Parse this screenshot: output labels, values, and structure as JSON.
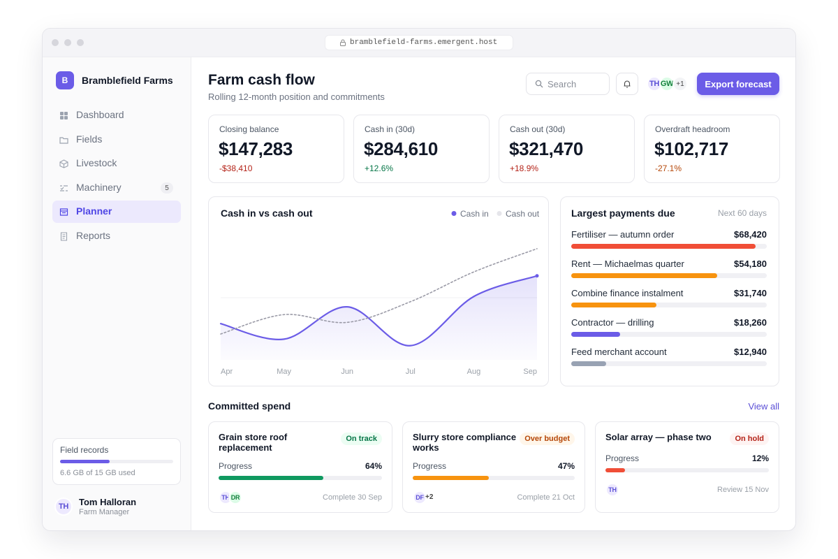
{
  "browser": {
    "url": "bramblefield-farms.emergent.host"
  },
  "brand": {
    "initial": "B",
    "name": "Bramblefield Farms"
  },
  "nav": [
    {
      "label": "Dashboard"
    },
    {
      "label": "Fields"
    },
    {
      "label": "Livestock"
    },
    {
      "label": "Machinery",
      "badge": 5
    },
    {
      "label": "Planner",
      "active": true
    },
    {
      "label": "Reports"
    }
  ],
  "storage": {
    "title": "Field records",
    "used": 6.6,
    "total": 15,
    "label": "6.6 GB of 15 GB used"
  },
  "user": {
    "initials": "TH",
    "name": "Tom Halloran",
    "role": "Farm Manager"
  },
  "header": {
    "title": "Farm cash flow",
    "subtitle": "Rolling 12-month position and commitments",
    "search": "Search",
    "avatars": [
      "TH",
      "GW"
    ],
    "more": "+1",
    "button": "Export forecast"
  },
  "kpis": [
    {
      "label": "Closing balance",
      "value": "$147,283",
      "change": "-$38,410",
      "change_color": "#b42318"
    },
    {
      "label": "Cash in (30d)",
      "value": "$284,610",
      "change": "+12.6%",
      "change_color": "#067647"
    },
    {
      "label": "Cash out (30d)",
      "value": "$321,470",
      "change": "+18.9%",
      "change_color": "#b42318"
    },
    {
      "label": "Overdraft headroom",
      "value": "$102,717",
      "change": "-27.1%",
      "change_color": "#b54708"
    }
  ],
  "cash_chart": {
    "type": "line",
    "title": "Cash in vs cash out",
    "categories": [
      "Apr",
      "May",
      "Jun",
      "Jul",
      "Aug",
      "Sep"
    ],
    "series": [
      {
        "name": "Cash in",
        "color": "#6b5ce7",
        "values": [
          28,
          16,
          41,
          11,
          49,
          65
        ]
      },
      {
        "name": "Cash out",
        "color": "#9a9aa6",
        "values": [
          20,
          35,
          29,
          45,
          68,
          86
        ]
      }
    ],
    "ylim": [
      0,
      100
    ]
  },
  "payments": {
    "title": "Largest payments due",
    "note": "Next 60 days",
    "items": [
      {
        "name": "Fertiliser — autumn order",
        "amount": 68420,
        "amount_label": "$68,420",
        "color": "#f04e37"
      },
      {
        "name": "Rent — Michaelmas quarter",
        "amount": 54180,
        "amount_label": "$54,180",
        "color": "#f7930f"
      },
      {
        "name": "Combine finance instalment",
        "amount": 31740,
        "amount_label": "$31,740",
        "color": "#f7930f"
      },
      {
        "name": "Contractor — drilling",
        "amount": 18260,
        "amount_label": "$18,260",
        "color": "#6b5ce7"
      },
      {
        "name": "Feed merchant account",
        "amount": 12940,
        "amount_label": "$12,940",
        "color": "#98a2b3"
      }
    ]
  },
  "committed": {
    "title": "Committed spend",
    "link": "View all",
    "projects": [
      {
        "name": "Grain store roof replacement",
        "status": "On track",
        "status_color": "#067647",
        "status_bg": "#ecfdf3",
        "progress_title": "Progress",
        "progress": 64,
        "progress_label": "64%",
        "color": "#0f9960",
        "avatars": [
          "TH",
          "DR"
        ],
        "due": "Complete 30 Sep"
      },
      {
        "name": "Slurry store compliance works",
        "status": "Over budget",
        "status_color": "#b54708",
        "status_bg": "#fff6ea",
        "progress_title": "Progress",
        "progress": 47,
        "progress_label": "47%",
        "color": "#f7930f",
        "avatars": [
          "DF"
        ],
        "more": "+2",
        "due": "Complete 21 Oct"
      },
      {
        "name": "Solar array — phase two",
        "status": "On hold",
        "status_color": "#b42318",
        "status_bg": "#fef3f2",
        "progress_title": "Progress",
        "progress": 12,
        "progress_label": "12%",
        "color": "#f04e37",
        "avatars": [
          "TH"
        ],
        "due": "Review 15 Nov"
      }
    ]
  }
}
